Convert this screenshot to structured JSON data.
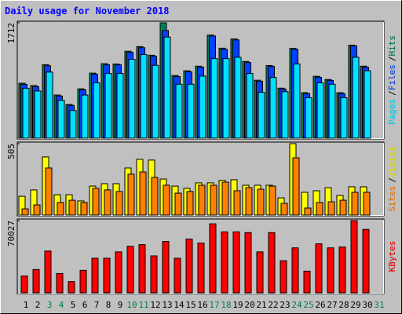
{
  "chart_data": [
    {
      "type": "bar",
      "title": "Daily usage for November 2018",
      "ylim": [
        0,
        1712
      ],
      "yticks": [
        1712
      ],
      "legend_separator": "/",
      "series": [
        {
          "name": "Hits",
          "color": "#00805a",
          "values": [
            815,
            780,
            1090,
            640,
            500,
            732,
            965,
            1105,
            1100,
            1290,
            1358,
            1230,
            1712,
            930,
            1000,
            1068,
            1530,
            1335,
            1472,
            1138,
            860,
            1078,
            742,
            1332,
            675,
            918,
            870,
            675,
            1380,
            1068,
            null
          ]
        },
        {
          "name": "Files",
          "color": "#0040ff",
          "values": [
            798,
            764,
            1073,
            625,
            486,
            717,
            949,
            1088,
            1088,
            1273,
            1342,
            1215,
            1597,
            914,
            984,
            1053,
            1516,
            1319,
            1458,
            1122,
            845,
            1064,
            729,
            1319,
            660,
            903,
            856,
            660,
            1369,
            1053,
            null
          ]
        },
        {
          "name": "Pages",
          "color": "#00e0ff",
          "values": [
            740,
            700,
            980,
            560,
            410,
            640,
            820,
            960,
            960,
            1170,
            1240,
            1080,
            1500,
            800,
            800,
            920,
            1180,
            1180,
            1200,
            960,
            680,
            900,
            690,
            1100,
            600,
            820,
            800,
            600,
            1200,
            1000,
            null
          ]
        }
      ]
    },
    {
      "type": "bar",
      "ylim": [
        0,
        505
      ],
      "yticks": [
        505
      ],
      "legend_separator": "/",
      "series": [
        {
          "name": "Visits",
          "color": "#ffff00",
          "values": [
            133,
            178,
            411,
            144,
            144,
            100,
            205,
            222,
            222,
            333,
            394,
            389,
            255,
            205,
            189,
            228,
            228,
            245,
            250,
            211,
            211,
            211,
            122,
            505,
            161,
            172,
            194,
            139,
            200,
            200,
            null
          ]
        },
        {
          "name": "Sites",
          "color": "#ff8000",
          "values": [
            44,
            72,
            333,
            89,
            105,
            89,
            189,
            178,
            167,
            289,
            305,
            266,
            211,
            155,
            167,
            211,
            211,
            233,
            172,
            194,
            183,
            205,
            83,
            405,
            50,
            89,
            94,
            105,
            161,
            161,
            null
          ]
        }
      ]
    },
    {
      "type": "bar",
      "ylim": [
        0,
        70027
      ],
      "yticks": [
        70027
      ],
      "categories": [
        "1",
        "2",
        "3",
        "4",
        "5",
        "6",
        "7",
        "8",
        "9",
        "10",
        "11",
        "12",
        "13",
        "14",
        "15",
        "16",
        "17",
        "18",
        "19",
        "20",
        "21",
        "22",
        "23",
        "24",
        "25",
        "26",
        "27",
        "28",
        "29",
        "30",
        "31"
      ],
      "category_colors": [
        "#000000",
        "#000000",
        "#008040",
        "#008040",
        "#000000",
        "#000000",
        "#000000",
        "#000000",
        "#000000",
        "#008040",
        "#008040",
        "#000000",
        "#000000",
        "#000000",
        "#000000",
        "#000000",
        "#008040",
        "#008040",
        "#000000",
        "#000000",
        "#000000",
        "#000000",
        "#000000",
        "#008040",
        "#008040",
        "#000000",
        "#000000",
        "#000000",
        "#000000",
        "#000000",
        "#008040"
      ],
      "series": [
        {
          "name": "KBytes",
          "color": "#ff0000",
          "values": [
            16300,
            22600,
            40500,
            18700,
            10900,
            21800,
            33500,
            33500,
            39700,
            45100,
            46700,
            35800,
            49800,
            33500,
            52100,
            48200,
            66900,
            59100,
            59100,
            58400,
            39700,
            58400,
            31100,
            43600,
            21000,
            47500,
            43600,
            44400,
            70027,
            61500,
            null
          ]
        }
      ]
    }
  ]
}
